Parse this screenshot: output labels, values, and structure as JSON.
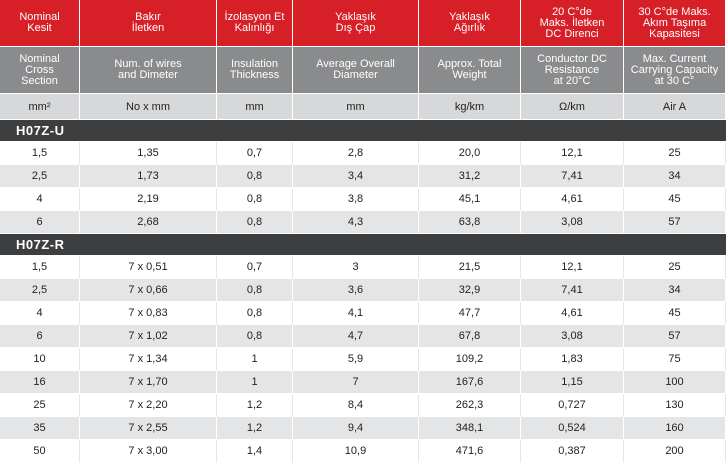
{
  "header_tr": [
    "Nominal\nKesit",
    "Bakır\nİletken",
    "İzolasyon Et\nKalınlığı",
    "Yaklaşık\nDış Çap",
    "Yaklaşık\nAğırlık",
    "20 C°de\nMaks. İletken\nDC Direnci",
    "30 C°de Maks.\nAkım Taşıma\nKapasitesi"
  ],
  "header_en": [
    "Nominal\nCross\nSection",
    "Num. of wires\nand Dimeter",
    "Insulation\nThickness",
    "Average Overall\nDiameter",
    "Approx. Total\nWeight",
    "Conductor DC\nResistance\nat 20°C",
    "Max. Current\nCarrying Capacity\nat 30 C°"
  ],
  "units": [
    "mm²",
    "No x mm",
    "mm",
    "mm",
    "kg/km",
    "Ω/km",
    "Air A"
  ],
  "sections": [
    {
      "title": "H07Z-U",
      "rows": [
        [
          "1,5",
          "1,35",
          "0,7",
          "2,8",
          "20,0",
          "12,1",
          "25"
        ],
        [
          "2,5",
          "1,73",
          "0,8",
          "3,4",
          "31,2",
          "7,41",
          "34"
        ],
        [
          "4",
          "2,19",
          "0,8",
          "3,8",
          "45,1",
          "4,61",
          "45"
        ],
        [
          "6",
          "2,68",
          "0,8",
          "4,3",
          "63,8",
          "3,08",
          "57"
        ]
      ]
    },
    {
      "title": "H07Z-R",
      "rows": [
        [
          "1,5",
          "7 x 0,51",
          "0,7",
          "3",
          "21,5",
          "12,1",
          "25"
        ],
        [
          "2,5",
          "7 x 0,66",
          "0,8",
          "3,6",
          "32,9",
          "7,41",
          "34"
        ],
        [
          "4",
          "7 x 0,83",
          "0,8",
          "4,1",
          "47,7",
          "4,61",
          "45"
        ],
        [
          "6",
          "7 x 1,02",
          "0,8",
          "4,7",
          "67,8",
          "3,08",
          "57"
        ],
        [
          "10",
          "7 x 1,34",
          "1",
          "5,9",
          "109,2",
          "1,83",
          "75"
        ],
        [
          "16",
          "7 x 1,70",
          "1",
          "7",
          "167,6",
          "1,15",
          "100"
        ],
        [
          "25",
          "7 x 2,20",
          "1,2",
          "8,4",
          "262,3",
          "0,727",
          "130"
        ],
        [
          "35",
          "7 x 2,55",
          "1,2",
          "9,4",
          "348,1",
          "0,524",
          "160"
        ],
        [
          "50",
          "7 x 3,00",
          "1,4",
          "10,9",
          "471,6",
          "0,387",
          "200"
        ]
      ]
    }
  ]
}
